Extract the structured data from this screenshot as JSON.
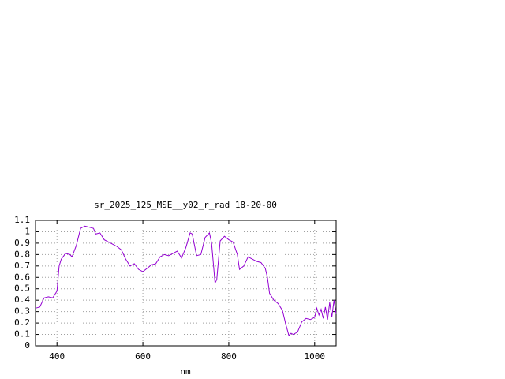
{
  "chart_data": {
    "type": "line",
    "title": "sr_2025_125_MSE__y02_r_rad 18-20-00",
    "x_label": "nm",
    "x": [
      350,
      360,
      370,
      380,
      390,
      400,
      405,
      410,
      420,
      430,
      435,
      445,
      455,
      465,
      475,
      485,
      490,
      500,
      510,
      520,
      530,
      540,
      550,
      560,
      570,
      580,
      590,
      600,
      610,
      620,
      630,
      640,
      650,
      660,
      670,
      680,
      690,
      700,
      710,
      715,
      725,
      735,
      745,
      755,
      760,
      768,
      772,
      780,
      790,
      800,
      810,
      820,
      825,
      835,
      845,
      855,
      865,
      875,
      885,
      890,
      895,
      905,
      915,
      925,
      932,
      940,
      945,
      950,
      960,
      970,
      980,
      990,
      1000,
      1005,
      1010,
      1015,
      1020,
      1025,
      1030,
      1035,
      1040,
      1045,
      1050
    ],
    "series": [
      {
        "color": "#9400d3",
        "values": [
          0.33,
          0.34,
          0.42,
          0.43,
          0.42,
          0.48,
          0.7,
          0.76,
          0.81,
          0.8,
          0.78,
          0.88,
          1.03,
          1.05,
          1.04,
          1.03,
          0.98,
          0.99,
          0.93,
          0.91,
          0.89,
          0.87,
          0.84,
          0.76,
          0.7,
          0.72,
          0.67,
          0.65,
          0.68,
          0.71,
          0.72,
          0.78,
          0.8,
          0.79,
          0.81,
          0.83,
          0.77,
          0.86,
          0.99,
          0.98,
          0.79,
          0.8,
          0.95,
          0.99,
          0.9,
          0.55,
          0.58,
          0.92,
          0.96,
          0.93,
          0.91,
          0.8,
          0.67,
          0.7,
          0.78,
          0.76,
          0.74,
          0.73,
          0.68,
          0.6,
          0.46,
          0.4,
          0.37,
          0.31,
          0.2,
          0.09,
          0.11,
          0.1,
          0.12,
          0.21,
          0.24,
          0.23,
          0.25,
          0.33,
          0.27,
          0.32,
          0.24,
          0.34,
          0.23,
          0.38,
          0.25,
          0.4,
          0.28
        ]
      }
    ],
    "xlim": [
      350,
      1050
    ],
    "xticks": [
      400,
      600,
      800,
      1000
    ],
    "ylim": [
      0,
      1.1
    ],
    "yticks": [
      0,
      0.1,
      0.2,
      0.3,
      0.4,
      0.5,
      0.6,
      0.7,
      0.8,
      0.9,
      1,
      1.1
    ],
    "grid": true
  }
}
